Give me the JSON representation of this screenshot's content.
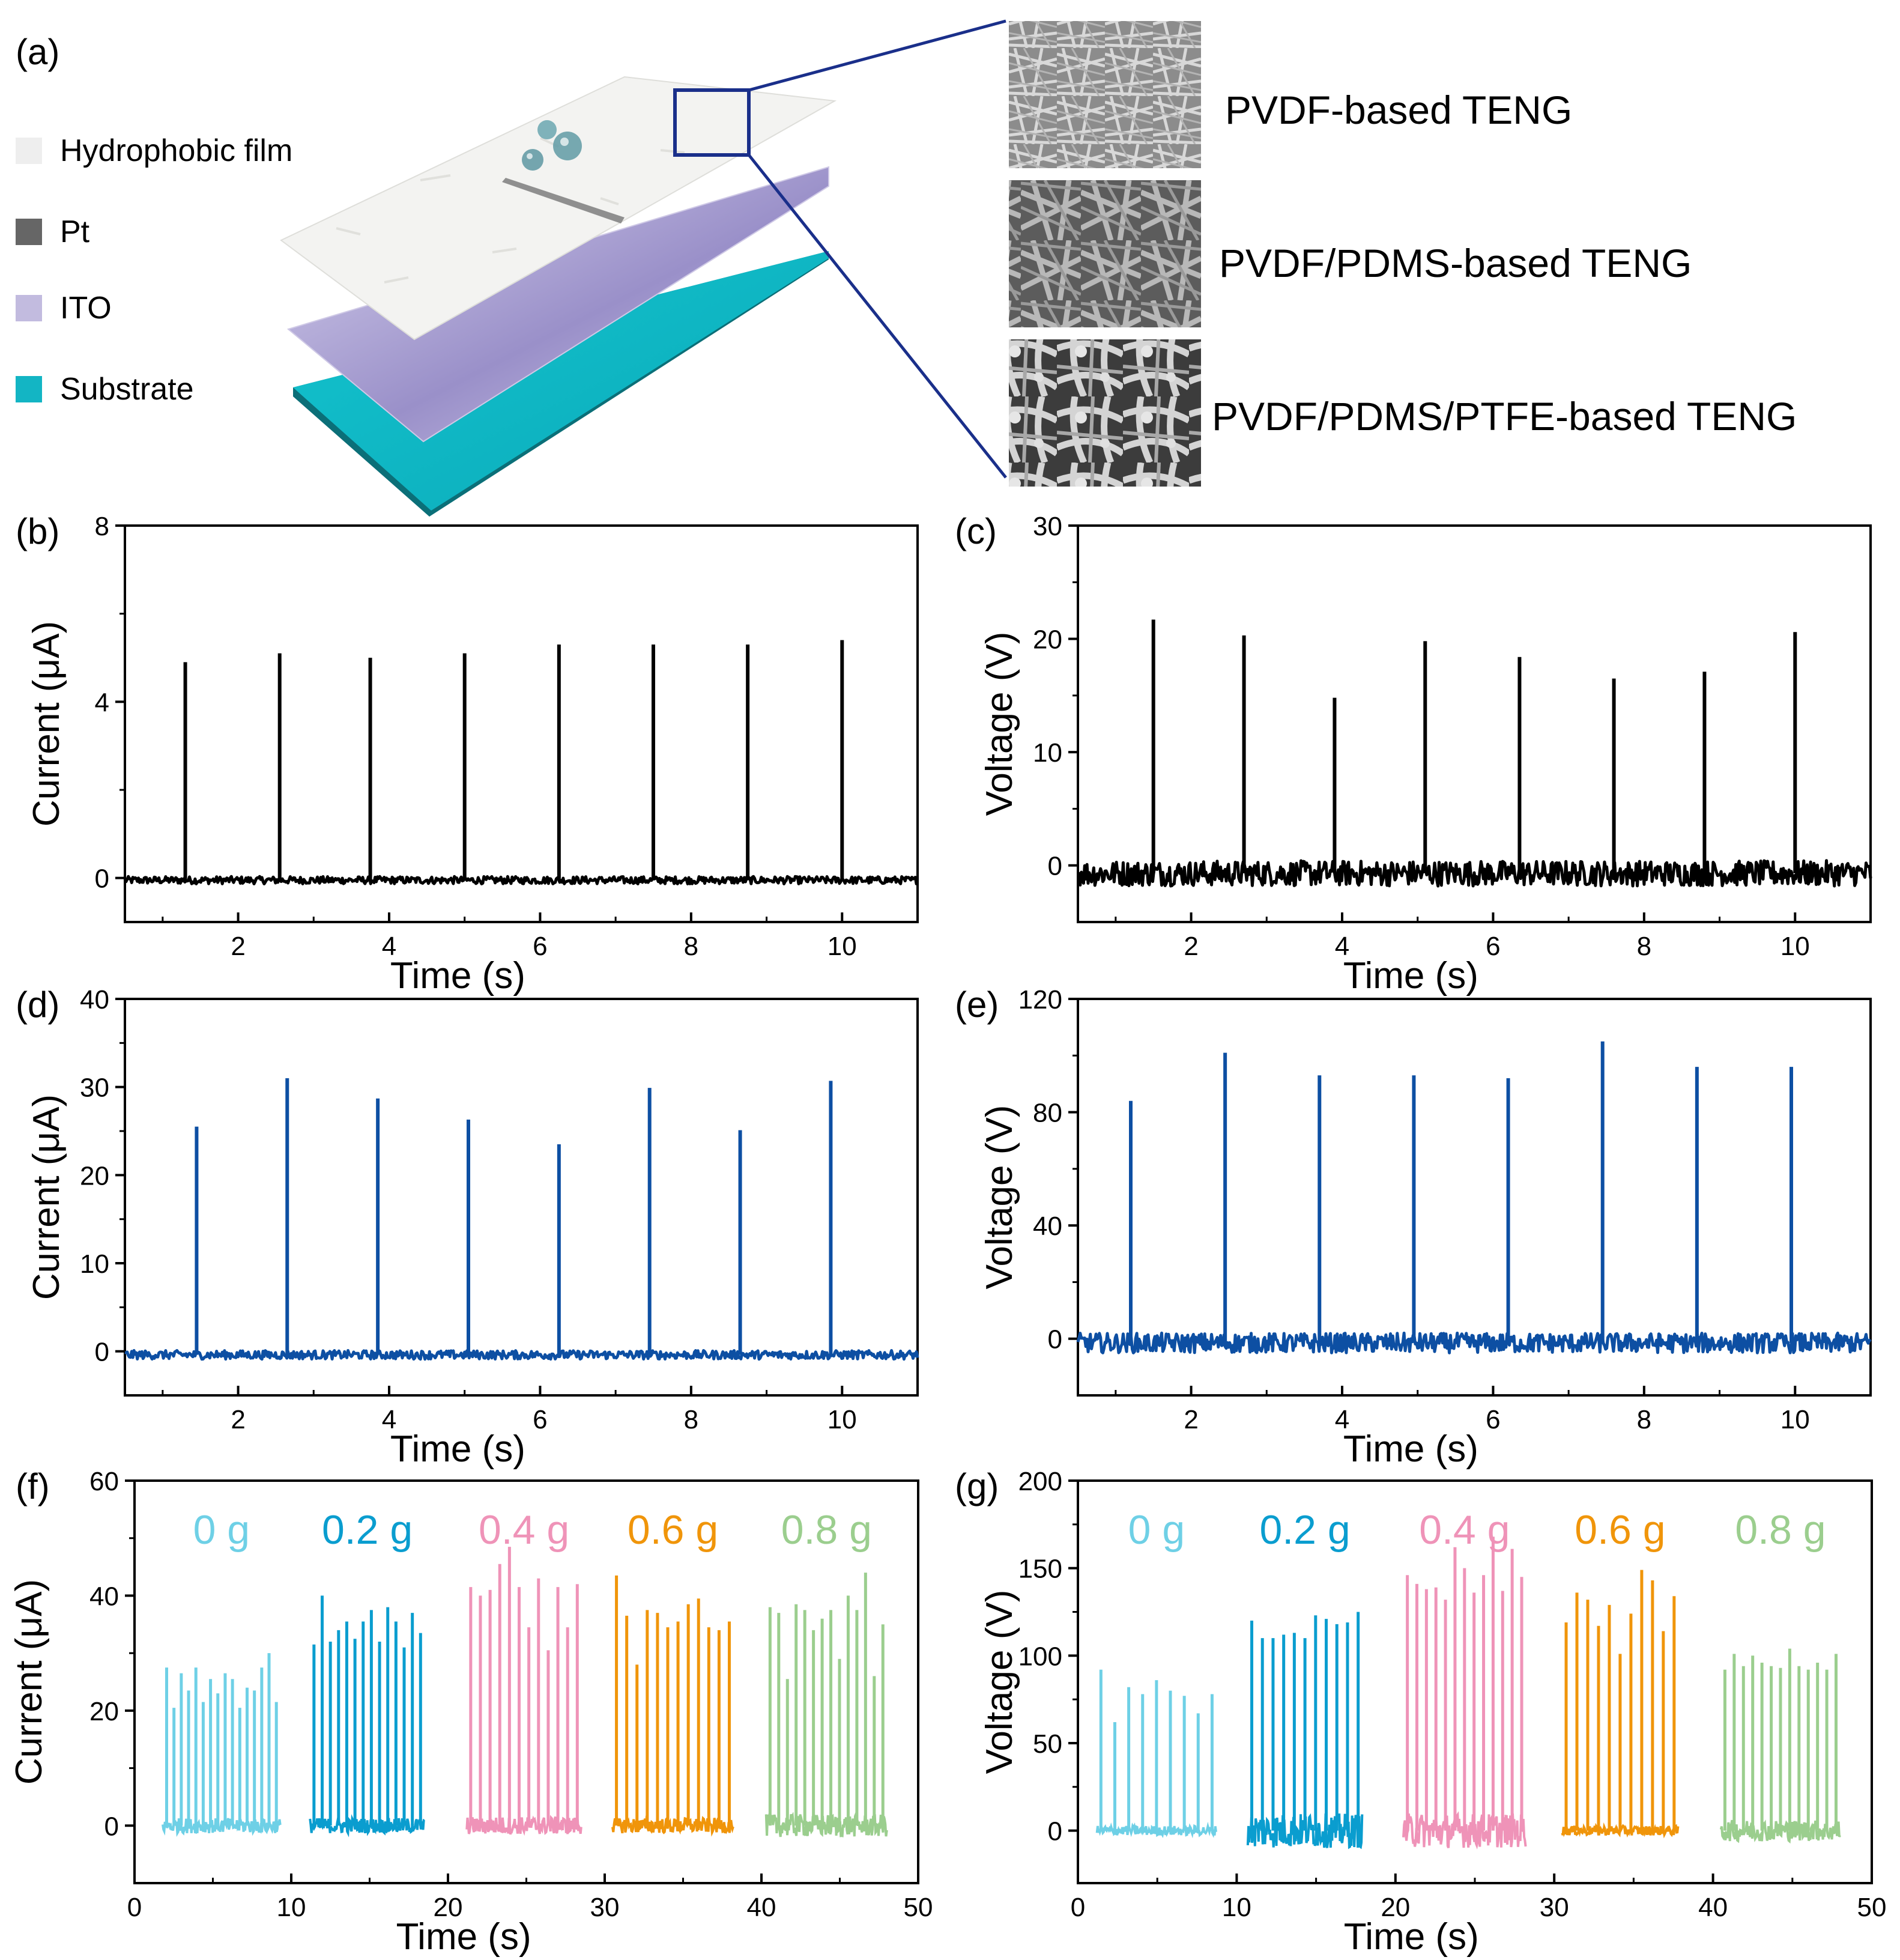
{
  "panel_a": {
    "letter": "(a)",
    "legend": [
      {
        "label": "Hydrophobic film",
        "color": "#eeeeee"
      },
      {
        "label": "Pt",
        "color": "#666666"
      },
      {
        "label": "ITO",
        "color": "#c2bbdf"
      },
      {
        "label": "Substrate",
        "color": "#13b5c4"
      }
    ],
    "sem_labels": [
      "PVDF-based TENG",
      "PVDF/PDMS-based TENG",
      "PVDF/PDMS/PTFE-based TENG"
    ],
    "layer_colors": {
      "film": "#f2f2f0",
      "pt": "#8c8c8c",
      "ito": "#b3aad8",
      "substrate": "#10b8c4",
      "callout": "#1a2f8a"
    }
  },
  "chart_data": [
    {
      "id": "b",
      "letter": "(b)",
      "type": "line",
      "xlabel": "Time (s)",
      "ylabel": "Current (μA)",
      "xlim": [
        0.5,
        11
      ],
      "ylim": [
        -1,
        8
      ],
      "xticks": [
        2,
        4,
        6,
        8,
        10
      ],
      "yticks": [
        0,
        4,
        8
      ],
      "color": "#000000",
      "baseline": -0.05,
      "peaks": [
        [
          1.3,
          4.9
        ],
        [
          2.55,
          5.1
        ],
        [
          3.75,
          5.0
        ],
        [
          5.0,
          5.1
        ],
        [
          6.25,
          5.3
        ],
        [
          7.5,
          5.3
        ],
        [
          8.75,
          5.3
        ],
        [
          10.0,
          5.4
        ]
      ],
      "noise": 0.12
    },
    {
      "id": "c",
      "letter": "(c)",
      "type": "line",
      "xlabel": "Time (s)",
      "ylabel": "Voltage (V)",
      "xlim": [
        0.5,
        11
      ],
      "ylim": [
        -5,
        30
      ],
      "xticks": [
        2,
        4,
        6,
        8,
        10
      ],
      "yticks": [
        0,
        10,
        20,
        30
      ],
      "color": "#000000",
      "baseline": -0.7,
      "peaks": [
        [
          1.5,
          21.7
        ],
        [
          2.7,
          20.3
        ],
        [
          3.9,
          14.8
        ],
        [
          5.1,
          19.8
        ],
        [
          6.35,
          18.4
        ],
        [
          7.6,
          16.5
        ],
        [
          8.8,
          17.1
        ],
        [
          10.0,
          20.6
        ]
      ],
      "noise": 1.6
    },
    {
      "id": "d",
      "letter": "(d)",
      "type": "line",
      "xlabel": "Time (s)",
      "ylabel": "Current (μA)",
      "xlim": [
        0.5,
        11
      ],
      "ylim": [
        -5,
        40
      ],
      "xticks": [
        2,
        4,
        6,
        8,
        10
      ],
      "yticks": [
        0,
        10,
        20,
        30,
        40
      ],
      "color": "#0d4fa3",
      "baseline": -0.4,
      "peaks": [
        [
          1.45,
          25.5
        ],
        [
          2.65,
          31.0
        ],
        [
          3.85,
          28.7
        ],
        [
          5.05,
          26.3
        ],
        [
          6.25,
          23.5
        ],
        [
          7.45,
          29.9
        ],
        [
          8.65,
          25.1
        ],
        [
          9.85,
          30.7
        ]
      ],
      "noise": 0.7
    },
    {
      "id": "e",
      "letter": "(e)",
      "type": "line",
      "xlabel": "Time (s)",
      "ylabel": "Voltage (V)",
      "xlim": [
        0.5,
        11
      ],
      "ylim": [
        -20,
        120
      ],
      "xticks": [
        2,
        4,
        6,
        8,
        10
      ],
      "yticks": [
        0,
        40,
        80,
        120
      ],
      "color": "#0d4fa3",
      "baseline": -1.5,
      "peaks": [
        [
          1.2,
          84
        ],
        [
          2.45,
          101
        ],
        [
          3.7,
          93
        ],
        [
          4.95,
          93
        ],
        [
          6.2,
          92
        ],
        [
          7.45,
          105
        ],
        [
          8.7,
          96
        ],
        [
          9.95,
          96
        ]
      ],
      "noise": 5
    },
    {
      "id": "f",
      "letter": "(f)",
      "type": "line",
      "xlabel": "Time (s)",
      "ylabel": "Current (μA)",
      "xlim": [
        0,
        50
      ],
      "ylim": [
        -10,
        60
      ],
      "xticks": [
        0,
        10,
        20,
        30,
        40,
        50
      ],
      "yticks": [
        0,
        20,
        40,
        60
      ],
      "series": [
        {
          "name": "0 g",
          "color": "#6ed0e6",
          "t0": 1.8,
          "t1": 9.3,
          "noise": 1.2,
          "peaks": [
            27.5,
            20.5,
            26.5,
            23.5,
            27.5,
            21.5,
            25.5,
            23,
            26.5,
            25.5,
            20.5,
            24,
            23.5,
            27.5,
            30,
            21.5
          ]
        },
        {
          "name": "0.2 g",
          "color": "#0a9dcf",
          "t0": 11.2,
          "t1": 18.5,
          "noise": 1.2,
          "peaks": [
            31.5,
            40,
            32,
            34,
            35.5,
            32.5,
            35.5,
            37.5,
            32,
            38,
            35.5,
            31,
            37,
            33.5
          ]
        },
        {
          "name": "0.4 g",
          "color": "#ef93b8",
          "t0": 21.2,
          "t1": 28.5,
          "noise": 1.4,
          "peaks": [
            41.5,
            40,
            41,
            45.5,
            48.5,
            41.5,
            34.5,
            43,
            30.5,
            41.5,
            34.5,
            42
          ]
        },
        {
          "name": "0.6 g",
          "color": "#f0950a",
          "t0": 30.5,
          "t1": 38.2,
          "noise": 1.2,
          "peaks": [
            43.5,
            36.5,
            28,
            37.5,
            37,
            34.5,
            35.5,
            38.5,
            39.5,
            34.5,
            34,
            35.5
          ]
        },
        {
          "name": "0.8 g",
          "color": "#9bce8e",
          "t0": 40.3,
          "t1": 48,
          "noise": 1.8,
          "peaks": [
            38,
            37,
            25.5,
            38.5,
            37.5,
            34,
            36,
            37.5,
            29,
            40,
            37.5,
            44,
            26,
            35
          ]
        }
      ]
    },
    {
      "id": "g",
      "letter": "(g)",
      "type": "line",
      "xlabel": "Time (s)",
      "ylabel": "Voltage (V)",
      "xlim": [
        0,
        50
      ],
      "ylim": [
        -30,
        200
      ],
      "xticks": [
        0,
        10,
        20,
        30,
        40,
        50
      ],
      "yticks": [
        0,
        50,
        100,
        150,
        200
      ],
      "series": [
        {
          "name": "0 g",
          "color": "#6ed0e6",
          "t0": 1.2,
          "t1": 8.7,
          "noise": 2.5,
          "peaks": [
            92,
            62,
            82,
            78,
            86,
            80,
            77,
            67,
            78
          ]
        },
        {
          "name": "0.2 g",
          "color": "#0a9dcf",
          "t0": 10.7,
          "t1": 17.9,
          "noise": 9,
          "peaks": [
            120,
            110,
            110,
            112,
            113,
            110,
            123,
            121,
            118,
            119,
            125
          ]
        },
        {
          "name": "0.4 g",
          "color": "#ef93b8",
          "t0": 20.5,
          "t1": 28.2,
          "noise": 9,
          "peaks": [
            146,
            141,
            138,
            139,
            132,
            162,
            150,
            136,
            146,
            168,
            137,
            161,
            145
          ]
        },
        {
          "name": "0.6 g",
          "color": "#f0950a",
          "t0": 30.5,
          "t1": 37.8,
          "noise": 2.5,
          "peaks": [
            119,
            136,
            132,
            117,
            129,
            101,
            124,
            149,
            143,
            114,
            134
          ]
        },
        {
          "name": "0.8 g",
          "color": "#9bce8e",
          "t0": 40.5,
          "t1": 48,
          "noise": 5.5,
          "peaks": [
            92,
            101,
            94,
            100,
            96,
            94,
            93,
            104,
            94,
            92,
            96,
            92,
            101
          ]
        }
      ]
    }
  ]
}
